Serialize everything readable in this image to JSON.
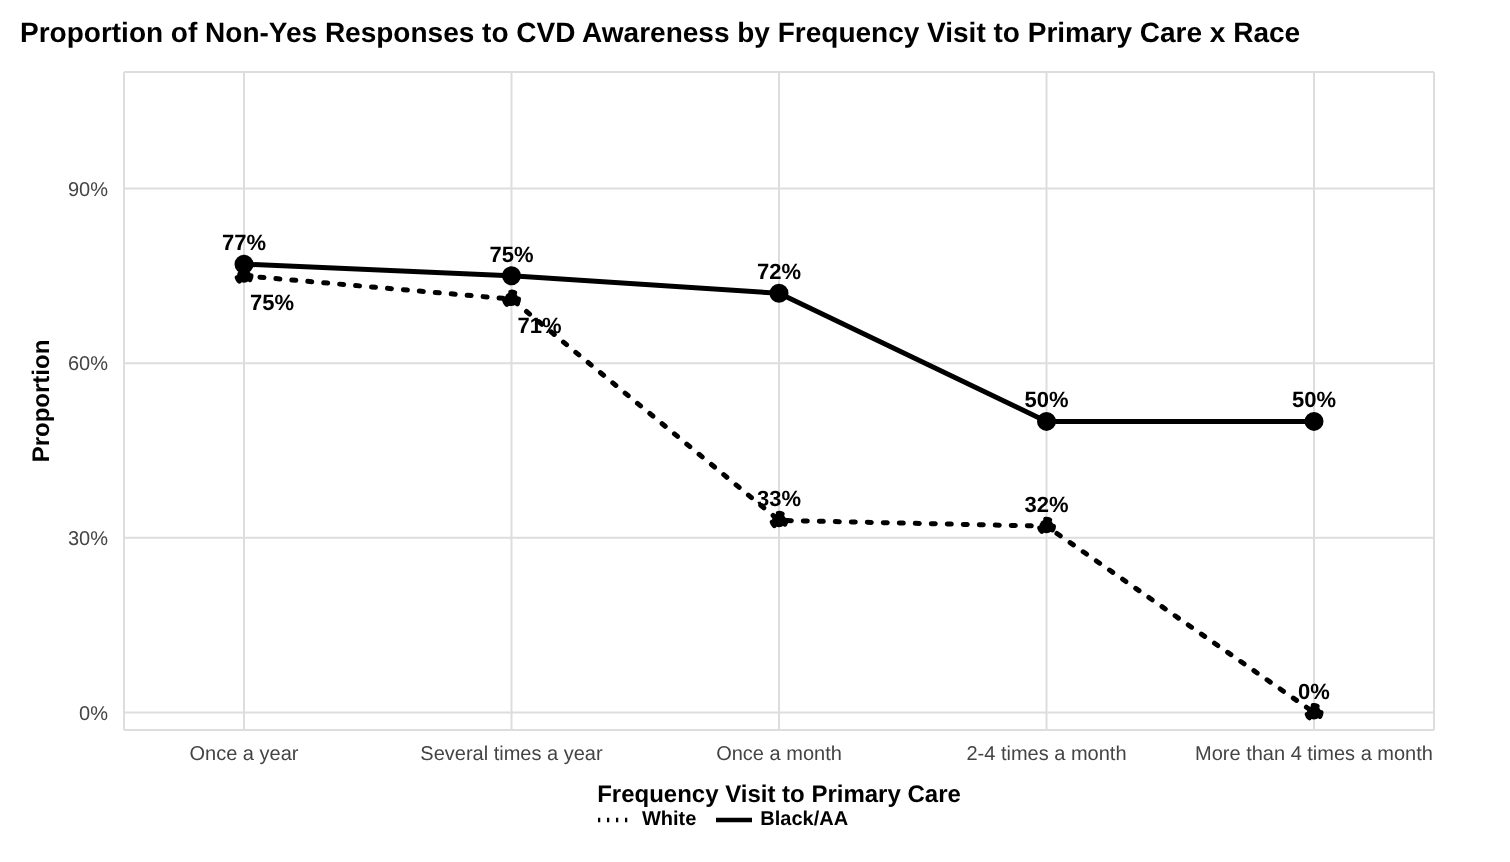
{
  "chart_data": {
    "type": "line",
    "title": "Proportion of Non-Yes Responses to CVD Awareness by Frequency Visit to Primary Care x Race",
    "xlabel": "Frequency Visit to Primary Care",
    "ylabel": "Proportion",
    "categories": [
      "Once a year",
      "Several times a year",
      "Once a month",
      "2-4 times a month",
      "More than 4 times a month"
    ],
    "series": [
      {
        "name": "White",
        "color": "#000000",
        "line_style": "dotted",
        "values": [
          75,
          71,
          33,
          32,
          0
        ],
        "value_labels": [
          "75%",
          "71%",
          "33%",
          "32%",
          "0%"
        ]
      },
      {
        "name": "Black/AA",
        "color": "#000000",
        "line_style": "solid",
        "values": [
          77,
          75,
          72,
          50,
          50
        ],
        "value_labels": [
          "77%",
          "75%",
          "72%",
          "50%",
          "50%"
        ]
      }
    ],
    "ylim": [
      -3,
      110
    ],
    "yticks": [
      {
        "value": 0,
        "label": "0%"
      },
      {
        "value": 30,
        "label": "30%"
      },
      {
        "value": 60,
        "label": "60%"
      },
      {
        "value": 90,
        "label": "90%"
      }
    ],
    "grid": true,
    "legend": "bottom",
    "marker": "circle"
  }
}
